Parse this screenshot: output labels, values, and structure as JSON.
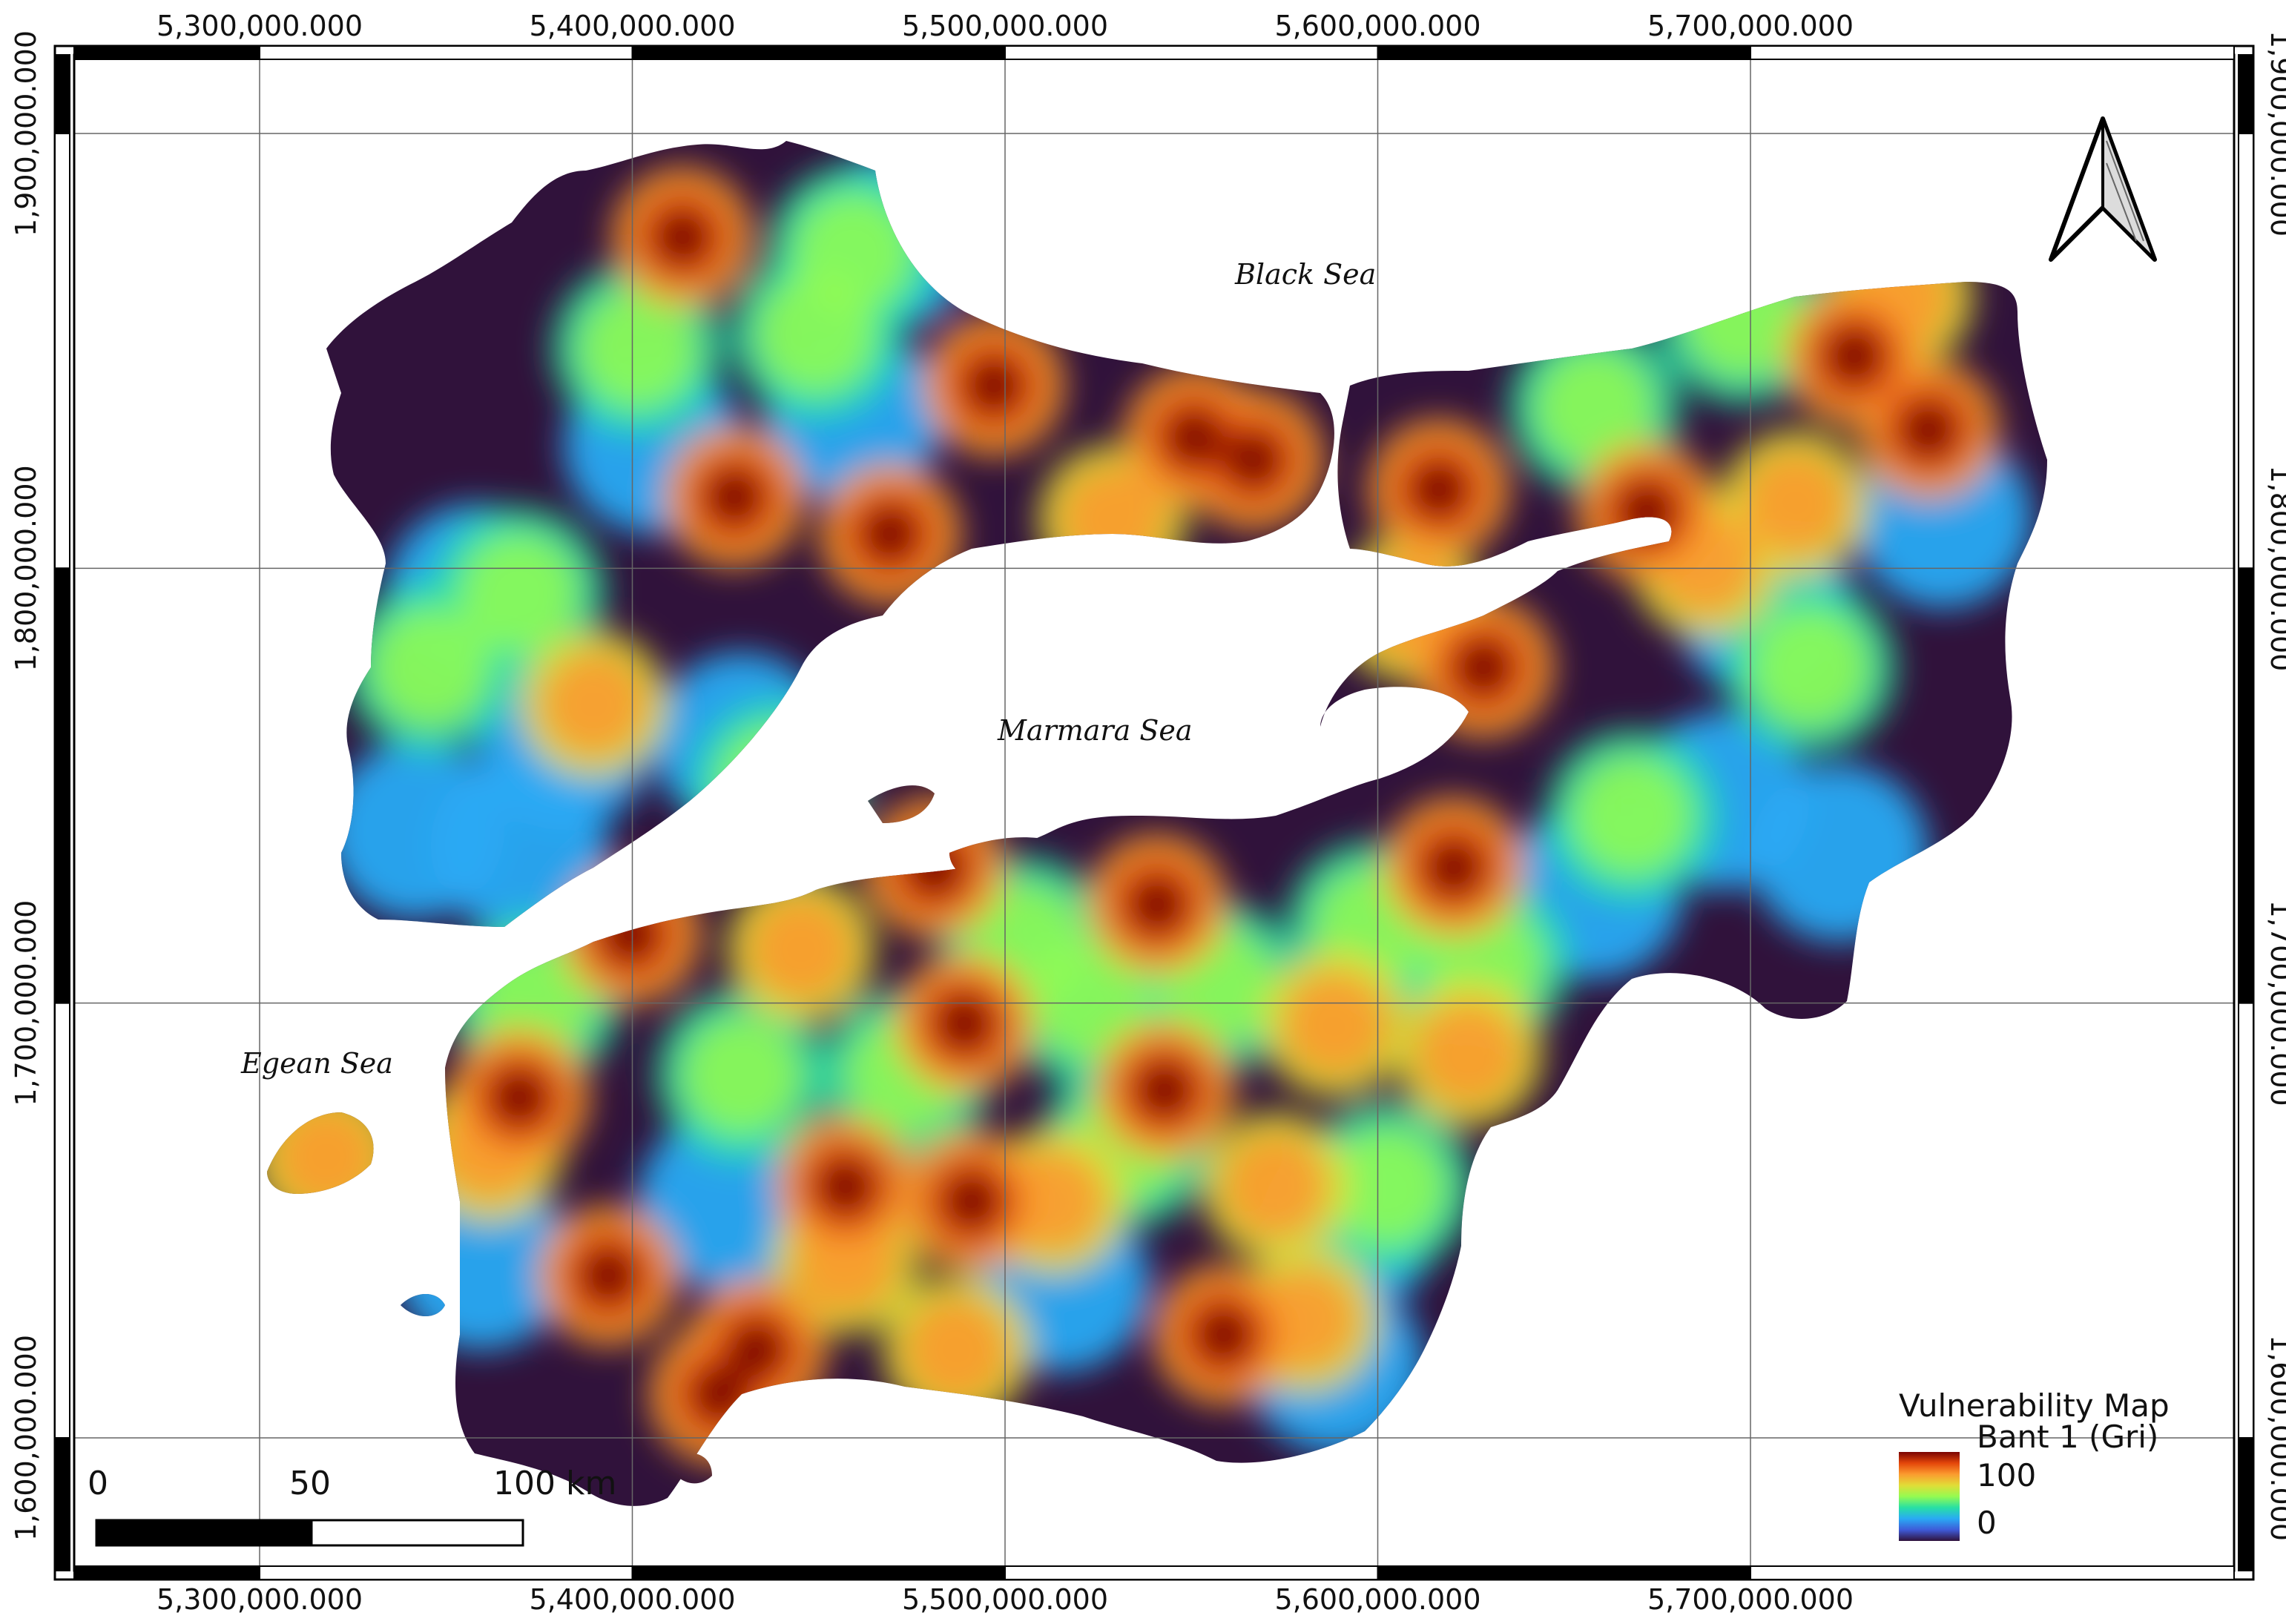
{
  "frame": {
    "x_ticks": [
      {
        "value": 5300000,
        "label": "5,300,000.000"
      },
      {
        "value": 5400000,
        "label": "5,400,000.000"
      },
      {
        "value": 5500000,
        "label": "5,500,000.000"
      },
      {
        "value": 5600000,
        "label": "5,600,000.000"
      },
      {
        "value": 5700000,
        "label": "5,700,000.000"
      }
    ],
    "y_ticks": [
      {
        "value": 1900000,
        "label": "1,900,000.000"
      },
      {
        "value": 1800000,
        "label": "1,800,000.000"
      },
      {
        "value": 1700000,
        "label": "1,700,000.000"
      },
      {
        "value": 1600000,
        "label": "1,600,000.000"
      }
    ],
    "grid": true
  },
  "labels": {
    "black_sea": "Black Sea",
    "marmara_sea": "Marmara Sea",
    "egean_sea": "Egean Sea"
  },
  "legend": {
    "title": "Vulnerability Map",
    "subtitle": "Bant 1 (Gri)",
    "max_label": "100",
    "min_label": "0",
    "ramp_colors": [
      "#7a0403",
      "#e4460a",
      "#fb9b2f",
      "#e1dd37",
      "#95fb51",
      "#28e0a4",
      "#29aaf4",
      "#3e5bd8",
      "#30123b"
    ]
  },
  "scale_bar": {
    "labels": [
      "0",
      "50",
      "100 km"
    ]
  },
  "north_arrow": {
    "icon": "north-arrow-icon"
  },
  "colors": {
    "land_low": "#30123b",
    "sea": "#ffffff",
    "frame": "#000000"
  }
}
